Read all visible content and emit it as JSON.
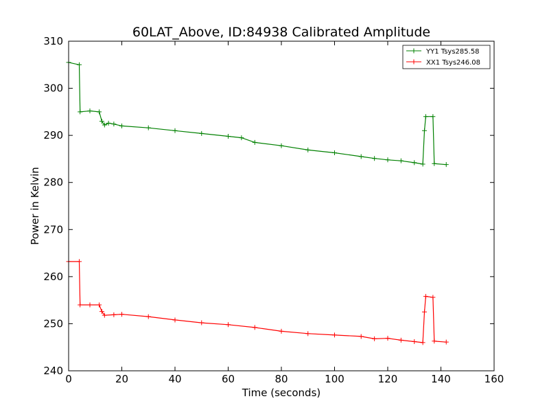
{
  "chart_data": {
    "type": "line",
    "title": "60LAT_Above, ID:84938 Calibrated Amplitude",
    "xlabel": "Time (seconds)",
    "ylabel": "Power in Kelvin",
    "xlim": [
      0,
      160
    ],
    "ylim": [
      240,
      310
    ],
    "xticks": [
      0,
      20,
      40,
      60,
      80,
      100,
      120,
      140,
      160
    ],
    "yticks": [
      240,
      250,
      260,
      270,
      280,
      290,
      300,
      310
    ],
    "grid": false,
    "legend_position": "top-right",
    "marker": "+",
    "series": [
      {
        "name": "YY1 Tsys285.58",
        "color": "#008000",
        "x": [
          0,
          4,
          4.3,
          8,
          11.5,
          12.5,
          13.5,
          15,
          17,
          20,
          30,
          40,
          50,
          60,
          65,
          70,
          80,
          90,
          100,
          110,
          115,
          120,
          125,
          130,
          133.2,
          133.8,
          134.3,
          137,
          137.5,
          142
        ],
        "y": [
          305.5,
          305,
          295,
          295.2,
          295,
          293,
          292.2,
          292.6,
          292.4,
          292,
          291.6,
          291,
          290.4,
          289.8,
          289.5,
          288.5,
          287.8,
          286.9,
          286.3,
          285.5,
          285.1,
          284.8,
          284.6,
          284.2,
          283.9,
          291,
          294,
          294,
          284,
          283.8
        ]
      },
      {
        "name": "XX1 Tsys246.08",
        "color": "#ff0000",
        "x": [
          0,
          4,
          4.3,
          8,
          11.5,
          12.5,
          13.5,
          17,
          20,
          30,
          40,
          50,
          60,
          70,
          80,
          90,
          100,
          110,
          115,
          120,
          125,
          130,
          133.2,
          133.8,
          134.3,
          137,
          137.5,
          142
        ],
        "y": [
          263.2,
          263.2,
          254,
          254,
          254,
          252.6,
          251.8,
          251.9,
          252,
          251.5,
          250.8,
          250.2,
          249.8,
          249.2,
          248.4,
          247.9,
          247.6,
          247.3,
          246.8,
          246.9,
          246.5,
          246.2,
          246,
          252.5,
          255.8,
          255.6,
          246.3,
          246.1
        ]
      }
    ]
  }
}
